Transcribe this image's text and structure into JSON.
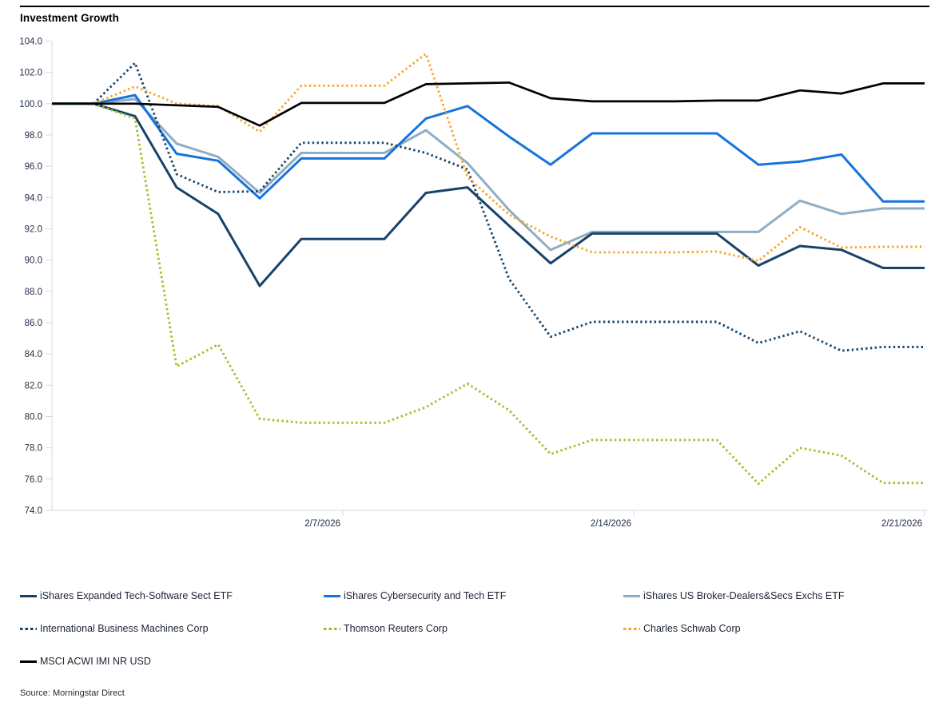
{
  "title": "Investment Growth",
  "source": "Source: Morningstar Direct",
  "chart_data": {
    "type": "line",
    "title": "Investment Growth",
    "xlabel": "",
    "ylabel": "",
    "ylim": [
      74,
      104
    ],
    "y_tick_step": 2,
    "grid": false,
    "legend_position": "bottom",
    "axis_color": "#D9D9D9",
    "x": [
      "1/31/2026",
      "2/1/2026",
      "2/2/2026",
      "2/3/2026",
      "2/4/2026",
      "2/5/2026",
      "2/6/2026",
      "2/7/2026",
      "2/8/2026",
      "2/9/2026",
      "2/10/2026",
      "2/11/2026",
      "2/12/2026",
      "2/13/2026",
      "2/14/2026",
      "2/15/2026",
      "2/16/2026",
      "2/17/2026",
      "2/18/2026",
      "2/19/2026",
      "2/20/2026",
      "2/21/2026"
    ],
    "x_tick_indices": [
      7,
      14,
      21
    ],
    "x_tick_labels": [
      "2/7/2026",
      "2/14/2026",
      "2/21/2026"
    ],
    "series": [
      {
        "name": "iShares Expanded Tech-Software Sect ETF",
        "color": "#17436A",
        "style": "solid",
        "values": [
          100,
          100,
          99.2,
          94.65,
          92.95,
          88.35,
          91.35,
          91.35,
          91.35,
          94.3,
          94.65,
          92.2,
          89.8,
          91.7,
          91.7,
          91.7,
          91.7,
          89.65,
          90.9,
          90.65,
          89.5,
          89.5
        ]
      },
      {
        "name": "iShares Cybersecurity and Tech ETF",
        "color": "#1673DC",
        "style": "solid",
        "values": [
          100,
          100,
          100.55,
          96.8,
          96.35,
          93.95,
          96.5,
          96.5,
          96.5,
          99.05,
          99.85,
          97.9,
          96.1,
          98.1,
          98.1,
          98.1,
          98.1,
          96.1,
          96.3,
          96.75,
          93.75,
          93.75
        ]
      },
      {
        "name": "iShares US Broker-Dealers&Secs Exchs ETF",
        "color": "#8FADC4",
        "style": "solid",
        "values": [
          100,
          100,
          100.3,
          97.45,
          96.6,
          94.3,
          96.85,
          96.85,
          96.85,
          98.3,
          96.2,
          93.2,
          90.65,
          91.8,
          91.8,
          91.8,
          91.8,
          91.8,
          93.8,
          92.95,
          93.3,
          93.3
        ]
      },
      {
        "name": "International Business Machines Corp",
        "color": "#17436A",
        "style": "dotted",
        "values": [
          100,
          100,
          102.6,
          95.5,
          94.35,
          94.4,
          97.5,
          97.5,
          97.5,
          96.85,
          95.8,
          88.8,
          85.1,
          86.05,
          86.05,
          86.05,
          86.05,
          84.7,
          85.45,
          84.2,
          84.45,
          84.45
        ]
      },
      {
        "name": "Thomson Reuters Corp",
        "color": "#A6BC26",
        "style": "dotted",
        "values": [
          100,
          100,
          99.05,
          83.2,
          84.6,
          79.85,
          79.6,
          79.6,
          79.6,
          80.6,
          82.1,
          80.4,
          77.6,
          78.5,
          78.5,
          78.5,
          78.5,
          75.7,
          78.0,
          77.5,
          75.75,
          75.75
        ]
      },
      {
        "name": "Charles Schwab Corp",
        "color": "#F7A52B",
        "style": "dotted",
        "values": [
          100,
          100,
          101.1,
          100.0,
          99.85,
          98.2,
          101.15,
          101.15,
          101.15,
          103.2,
          95.3,
          92.9,
          91.5,
          90.5,
          90.5,
          90.5,
          90.55,
          89.95,
          92.1,
          90.8,
          90.85,
          90.85
        ]
      },
      {
        "name": "MSCI ACWI IMI NR USD",
        "color": "#000000",
        "style": "solid",
        "values": [
          100,
          100,
          100.0,
          99.9,
          99.8,
          98.6,
          100.05,
          100.05,
          100.05,
          101.25,
          101.3,
          101.35,
          100.35,
          100.15,
          100.15,
          100.15,
          100.2,
          100.2,
          100.85,
          100.65,
          101.3,
          101.3
        ]
      }
    ]
  }
}
